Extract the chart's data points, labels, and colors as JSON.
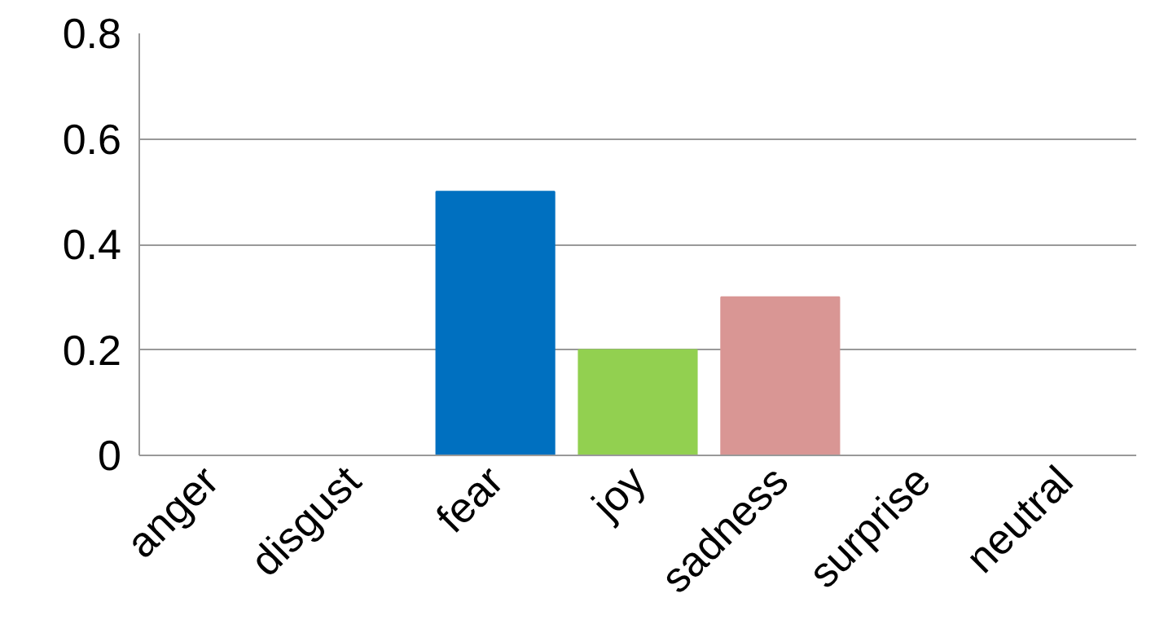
{
  "chart_data": {
    "type": "bar",
    "categories": [
      "anger",
      "disgust",
      "fear",
      "joy",
      "sadness",
      "surprise",
      "neutral"
    ],
    "values": [
      0,
      0,
      0.5,
      0.2,
      0.3,
      0,
      0
    ],
    "colors": [
      null,
      null,
      "#0070c0",
      "#92d050",
      "#d99694",
      null,
      null
    ],
    "ylim": [
      0,
      0.8
    ],
    "yticks": [
      0,
      0.2,
      0.4,
      0.6,
      0.8
    ],
    "grid": "y"
  }
}
